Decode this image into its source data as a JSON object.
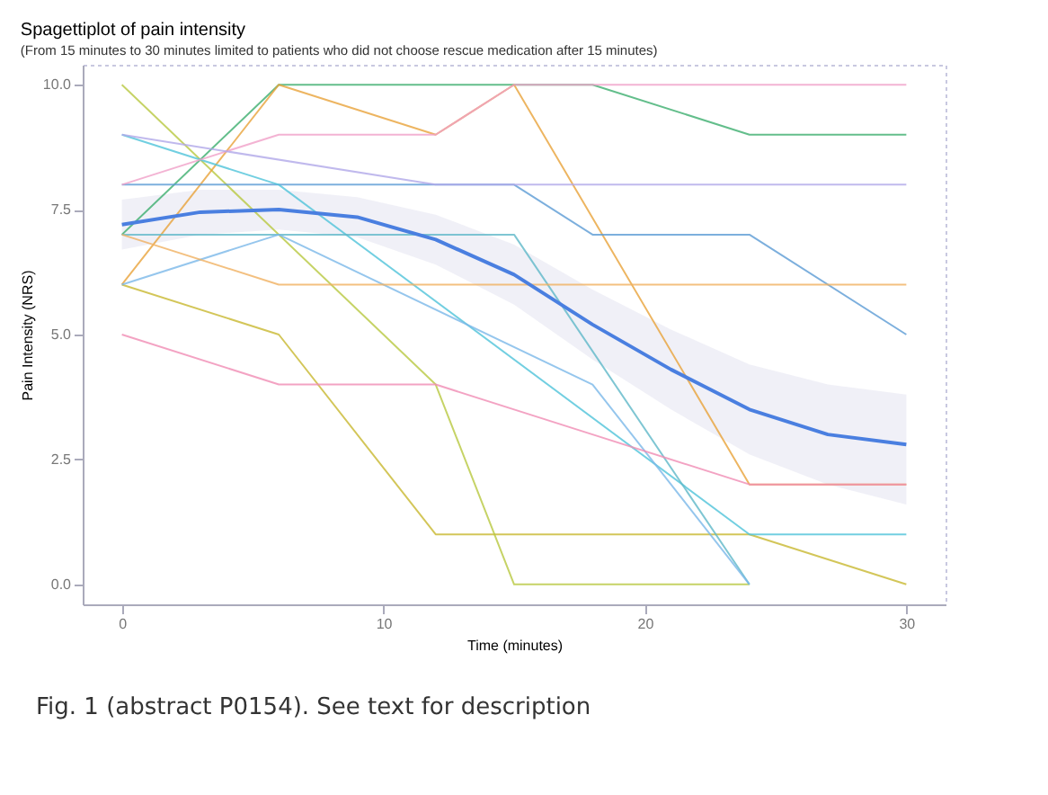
{
  "chart_data": {
    "type": "line",
    "title": "Spagettiplot of pain intensity",
    "subtitle": "(From 15 minutes to 30 minutes limited to patients who did not choose rescue medication after 15 minutes)",
    "xlabel": "Time (minutes)",
    "ylabel": "Pain Intensity (NRS)",
    "annotations": [
      "Fig. 1 (abstract P0154). See text for description"
    ],
    "xlim": [
      -1.5,
      31.5
    ],
    "ylim": [
      -0.4,
      10.4
    ],
    "xticks": [
      0,
      10,
      20,
      30
    ],
    "yticks": [
      {
        "value": 0,
        "label": "0.0"
      },
      {
        "value": 2.5,
        "label": "2.5"
      },
      {
        "value": 5,
        "label": "5.0"
      },
      {
        "value": 7.5,
        "label": "7.5"
      },
      {
        "value": 10,
        "label": "10.0"
      }
    ],
    "series": [
      {
        "color": "#c8b830",
        "x": [
          0,
          6,
          12,
          24,
          30
        ],
        "values": [
          6,
          5,
          1,
          1,
          0
        ]
      },
      {
        "color": "#b8c840",
        "x": [
          0,
          12,
          15,
          24
        ],
        "values": [
          10,
          4,
          0,
          0
        ]
      },
      {
        "color": "#3cae6e",
        "x": [
          0,
          6,
          18,
          24,
          30
        ],
        "values": [
          7,
          10,
          10,
          9,
          9
        ]
      },
      {
        "color": "#e8a33a",
        "x": [
          0,
          6,
          12,
          15,
          24,
          30
        ],
        "values": [
          6,
          10,
          9,
          10,
          2,
          2
        ]
      },
      {
        "color": "#5b9bd5",
        "x": [
          0,
          15,
          18,
          24,
          30
        ],
        "values": [
          8,
          8,
          7,
          7,
          5
        ]
      },
      {
        "color": "#4fc3d9",
        "x": [
          0,
          6,
          24,
          30
        ],
        "values": [
          9,
          8,
          1,
          1
        ]
      },
      {
        "color": "#5fb8c8",
        "x": [
          0,
          15,
          24
        ],
        "values": [
          7,
          7,
          0
        ]
      },
      {
        "color": "#7ab8e8",
        "x": [
          0,
          6,
          18,
          24
        ],
        "values": [
          6,
          7,
          4,
          0
        ]
      },
      {
        "color": "#f08cb4",
        "x": [
          0,
          6,
          12,
          18,
          24,
          30
        ],
        "values": [
          5,
          4,
          4,
          3,
          2,
          2
        ]
      },
      {
        "color": "#f0a0c8",
        "x": [
          0,
          6,
          12,
          15,
          30
        ],
        "values": [
          8,
          9,
          9,
          10,
          10
        ]
      },
      {
        "color": "#f0b060",
        "x": [
          0,
          6,
          12,
          30
        ],
        "values": [
          7,
          6,
          6,
          6
        ]
      },
      {
        "color": "#b0a8e8",
        "x": [
          0,
          12,
          24,
          30
        ],
        "values": [
          9,
          8,
          8,
          8
        ]
      },
      {
        "color": "#4a7fe0",
        "x": [
          0,
          3,
          6,
          9,
          12,
          15,
          18,
          21,
          24,
          27,
          30
        ],
        "values": [
          7.2,
          7.45,
          7.5,
          7.35,
          6.9,
          6.2,
          5.2,
          4.3,
          3.5,
          3.0,
          2.8
        ],
        "lower": [
          6.7,
          7.0,
          7.1,
          6.95,
          6.4,
          5.6,
          4.5,
          3.5,
          2.6,
          2.0,
          1.6
        ],
        "upper": [
          7.7,
          7.9,
          7.9,
          7.75,
          7.4,
          6.8,
          5.9,
          5.1,
          4.4,
          4.0,
          3.8
        ]
      }
    ]
  }
}
